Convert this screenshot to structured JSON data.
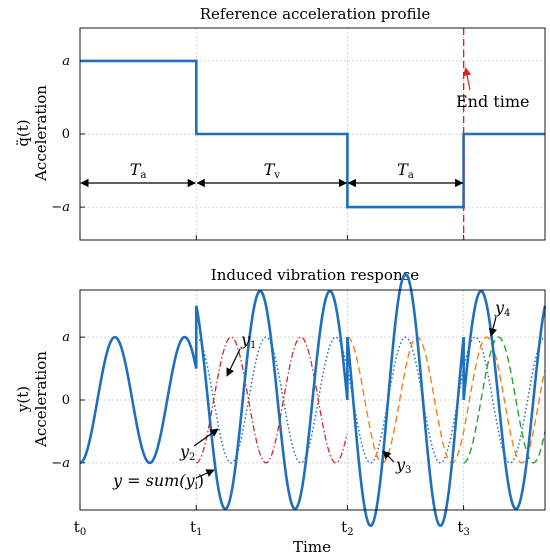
{
  "colors": {
    "profile": "#1f6fbd",
    "end_time": "#e0201b",
    "y": "#1f6fbd",
    "y1": "#1f6fbd",
    "y2": "#d62728",
    "y3": "#ff7f0e",
    "y4": "#2ca02c"
  },
  "chart_data": [
    {
      "type": "line",
      "title": "Reference acceleration profile",
      "ylabel_math": "q̈(t)",
      "ylabel": "Acceleration",
      "xlim": [
        0,
        4
      ],
      "ylim": [
        -1.45,
        1.45
      ],
      "y_ticks": [
        -1,
        0,
        1
      ],
      "y_tick_labels": [
        "−a",
        "0",
        "a"
      ],
      "grid": true,
      "series": [
        {
          "name": "q̈(t)",
          "x": [
            0,
            1,
            1,
            2.3,
            2.3,
            3.3,
            3.3,
            4
          ],
          "y": [
            1,
            1,
            0,
            0,
            -1,
            -1,
            0,
            0
          ]
        }
      ],
      "vline": {
        "x": 3.3,
        "label": "End time"
      },
      "intervals": [
        {
          "from": 0,
          "to": 1,
          "label": "T",
          "sub": "a"
        },
        {
          "from": 1,
          "to": 2.3,
          "label": "T",
          "sub": "v"
        },
        {
          "from": 2.3,
          "to": 3.3,
          "label": "T",
          "sub": "a"
        }
      ]
    },
    {
      "type": "line",
      "title": "Induced vibration response",
      "ylabel_math": "y(t)",
      "ylabel": "Acceleration",
      "xlabel": "Time",
      "xlim": [
        0,
        4
      ],
      "ylim": [
        -1.75,
        1.75
      ],
      "x_ticks": [
        0,
        1,
        2.3,
        3.3
      ],
      "x_tick_labels": [
        {
          "main": "t",
          "sub": "0"
        },
        {
          "main": "t",
          "sub": "1"
        },
        {
          "main": "t",
          "sub": "2"
        },
        {
          "main": "t",
          "sub": "3"
        }
      ],
      "y_ticks": [
        -1,
        0,
        1
      ],
      "y_tick_labels": [
        "−a",
        "0",
        "a"
      ],
      "grid": true,
      "period": 0.6,
      "series": [
        {
          "name": "y = sum(yi)",
          "kind": "sum",
          "starts": [
            0,
            1,
            2.3,
            3.3
          ],
          "amps": [
            1,
            -1,
            -1,
            1
          ]
        },
        {
          "name": "y1",
          "kind": "component",
          "start": 1,
          "amp": -1
        },
        {
          "name": "y2",
          "kind": "component",
          "start": 1,
          "amp": 1,
          "end": 2.3
        },
        {
          "name": "y3",
          "kind": "component",
          "start": 2.3,
          "amp": -1
        },
        {
          "name": "y4",
          "kind": "component",
          "start": 3.3,
          "amp": 1
        }
      ],
      "annotations": [
        {
          "text": "y",
          "sub": "1"
        },
        {
          "text": "y",
          "sub": "2"
        },
        {
          "text": "y",
          "sub": "3"
        },
        {
          "text": "y",
          "sub": "4"
        },
        {
          "text": "y = sum(y",
          "sub": "i",
          "suffix": ")"
        }
      ]
    }
  ]
}
